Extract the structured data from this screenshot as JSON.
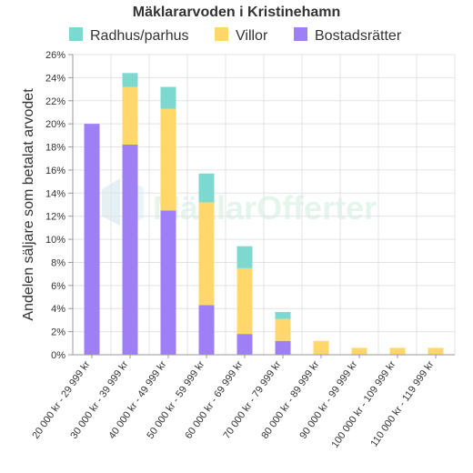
{
  "chart_data": {
    "type": "bar",
    "stacked": true,
    "title": "Mäklararvoden i Kristinehamn",
    "ylabel": "Andelen säljare som betalat arvodet",
    "xlabel": "",
    "ylim": [
      0,
      26
    ],
    "yticks": [
      0,
      2,
      4,
      6,
      8,
      10,
      12,
      14,
      16,
      18,
      20,
      22,
      24,
      26
    ],
    "ytick_suffix": "%",
    "grid": true,
    "legend_position": "top",
    "categories": [
      "20 000 kr - 29 999 kr",
      "30 000 kr - 39 999 kr",
      "40 000 kr - 49 999 kr",
      "50 000 kr - 59 999 kr",
      "60 000 kr - 69 999 kr",
      "70 000 kr - 79 999 kr",
      "80 000 kr - 89 999 kr",
      "90 000 kr - 99 999 kr",
      "100 000 kr - 109 999 kr",
      "110 000 kr - 119 999 kr"
    ],
    "series": [
      {
        "name": "Bostadsrätter",
        "color": "#9f7ff6",
        "values": [
          20.0,
          18.2,
          12.5,
          4.3,
          1.8,
          1.2,
          0,
          0,
          0,
          0
        ]
      },
      {
        "name": "Villor",
        "color": "#ffd76a",
        "values": [
          0,
          5.0,
          8.8,
          8.9,
          5.7,
          1.9,
          1.2,
          0.6,
          0.6,
          0.6
        ]
      },
      {
        "name": "Radhus/parhus",
        "color": "#7dd9d0",
        "values": [
          0,
          1.2,
          1.9,
          2.5,
          1.9,
          0.6,
          0,
          0,
          0,
          0
        ]
      }
    ],
    "legend_order": [
      "Radhus/parhus",
      "Villor",
      "Bostadsrätter"
    ],
    "watermark": "MäklarOfferter"
  }
}
